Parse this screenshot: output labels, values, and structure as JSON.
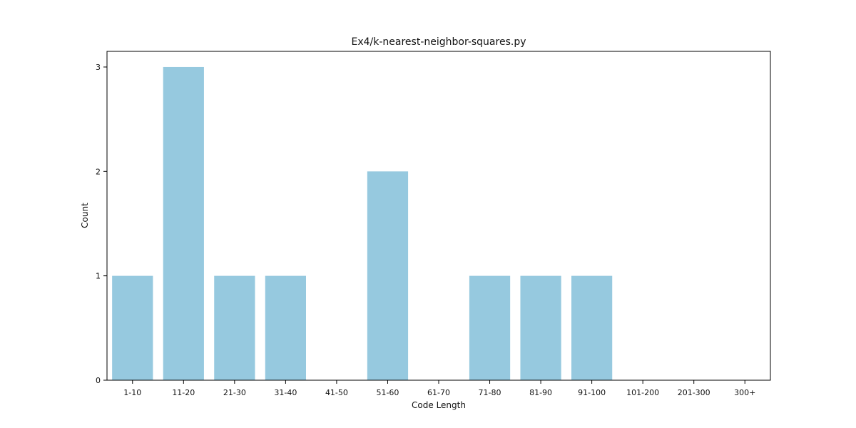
{
  "chart_data": {
    "type": "bar",
    "title": "Ex4/k-nearest-neighbor-squares.py",
    "xlabel": "Code Length",
    "ylabel": "Count",
    "categories": [
      "1-10",
      "11-20",
      "21-30",
      "31-40",
      "41-50",
      "51-60",
      "61-70",
      "71-80",
      "81-90",
      "91-100",
      "101-200",
      "201-300",
      "300+"
    ],
    "values": [
      1,
      3,
      1,
      1,
      0,
      2,
      0,
      1,
      1,
      1,
      0,
      0,
      0
    ],
    "ylim": [
      0,
      3.15
    ],
    "yticks": [
      0,
      1,
      2,
      3
    ],
    "grid": false,
    "bar_color": "#96c9df"
  }
}
